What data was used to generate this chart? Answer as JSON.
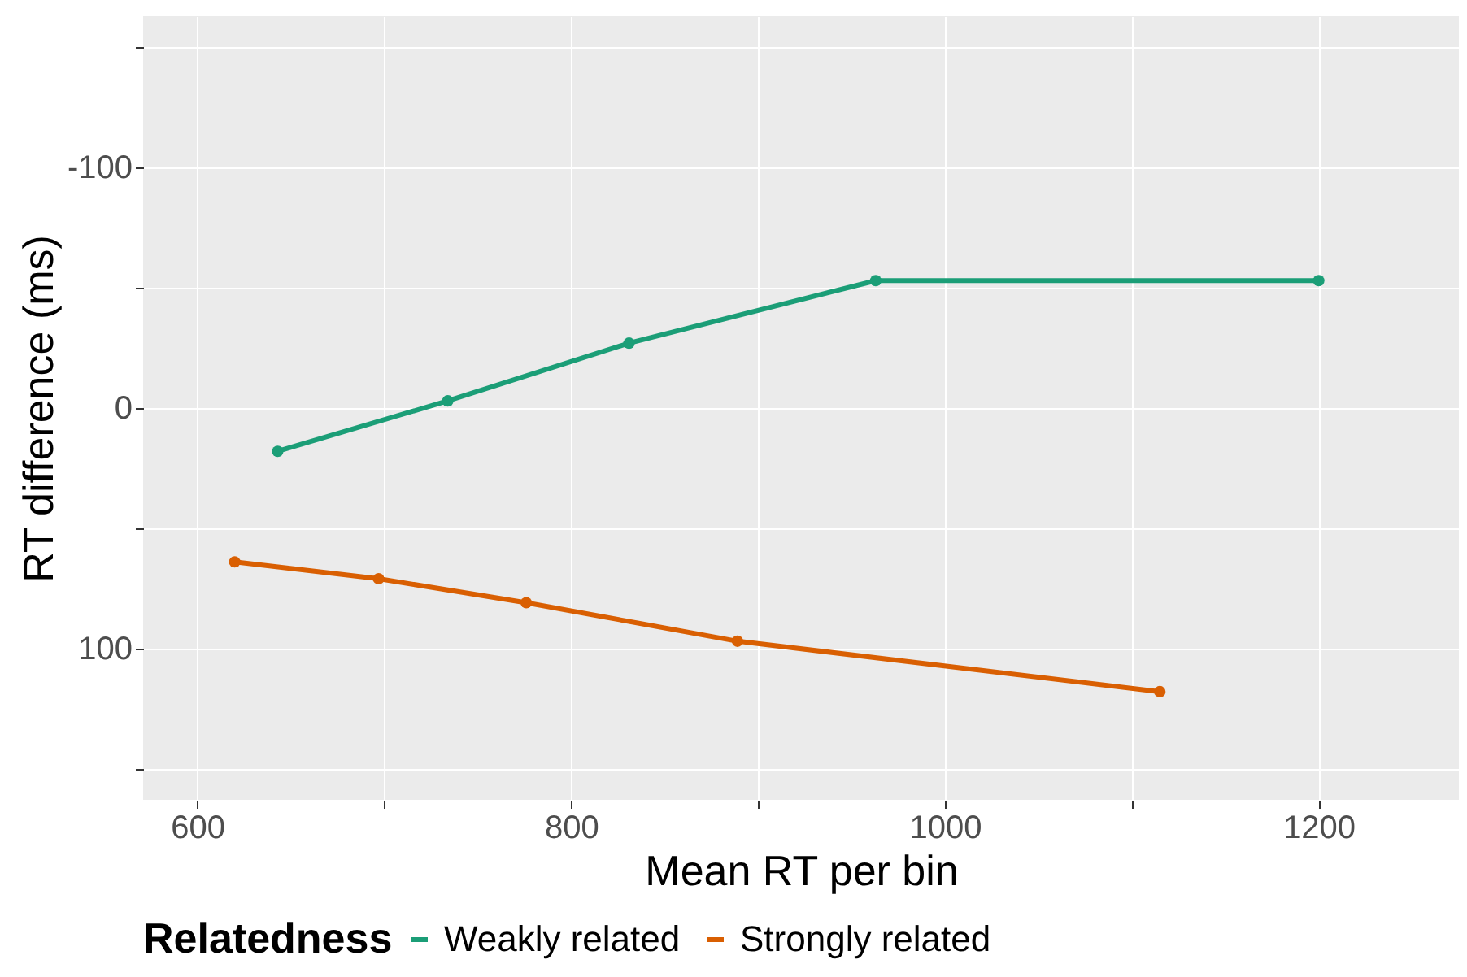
{
  "chart_data": {
    "type": "line",
    "xlabel": "Mean RT per bin",
    "ylabel": "RT difference (ms)",
    "legend_title": "Relatedness",
    "legend": "bottom",
    "grid": true,
    "marker": "circle",
    "line_style": "solid",
    "xlim": [
      571,
      1275
    ],
    "xticks": [
      600,
      {
        "value": 700,
        "label": null
      },
      800,
      {
        "value": 900,
        "label": null
      },
      1000,
      {
        "value": 1100,
        "label": null
      },
      1200
    ],
    "ylim": [
      163,
      -163
    ],
    "yticks": [
      {
        "value": -150,
        "label": null
      },
      -100,
      {
        "value": -50,
        "label": null
      },
      0,
      {
        "value": 50,
        "label": null
      },
      100,
      {
        "value": 150,
        "label": null
      }
    ],
    "series": [
      {
        "name": "Weakly related",
        "color": "#1b9e77",
        "x": [
          643,
          734,
          831,
          963,
          1200
        ],
        "values": [
          18,
          -3,
          -27,
          -53,
          -53
        ]
      },
      {
        "name": "Strongly related",
        "color": "#d95f02",
        "x": [
          620,
          697,
          776,
          889,
          1115
        ],
        "values": [
          64,
          71,
          81,
          97,
          118
        ]
      }
    ]
  }
}
